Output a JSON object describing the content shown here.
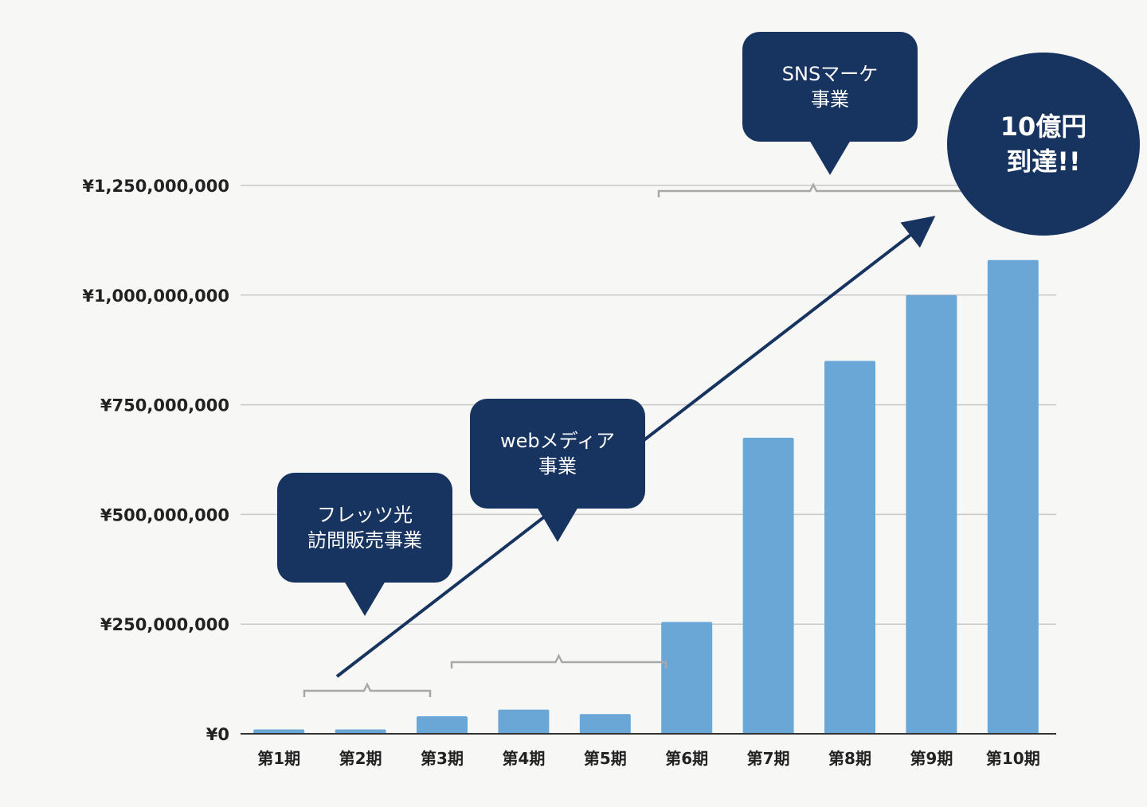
{
  "chart_data": {
    "type": "bar",
    "categories": [
      "第1期",
      "第2期",
      "第3期",
      "第4期",
      "第5期",
      "第6期",
      "第7期",
      "第8期",
      "第9期",
      "第10期"
    ],
    "values": [
      10000000,
      10000000,
      40000000,
      55000000,
      45000000,
      255000000,
      675000000,
      850000000,
      1000000000,
      1080000000
    ],
    "ylim": [
      0,
      1250000000
    ],
    "yticks": [
      {
        "value": 0,
        "label": "¥0"
      },
      {
        "value": 250000000,
        "label": "¥250,000,000"
      },
      {
        "value": 500000000,
        "label": "¥500,000,000"
      },
      {
        "value": 750000000,
        "label": "¥750,000,000"
      },
      {
        "value": 1000000000,
        "label": "¥1,000,000,000"
      },
      {
        "value": 1250000000,
        "label": "¥1,250,000,000"
      }
    ],
    "grid": true,
    "bar_color": "#6aa6d6",
    "accent_color": "#17335f",
    "annotations": {
      "phase1": "フレッツ光\n訪問販売事業",
      "phase2": "webメディア\n事業",
      "phase3": "SNSマーケ\n事業",
      "goal": "10億円\n到達!!"
    }
  }
}
